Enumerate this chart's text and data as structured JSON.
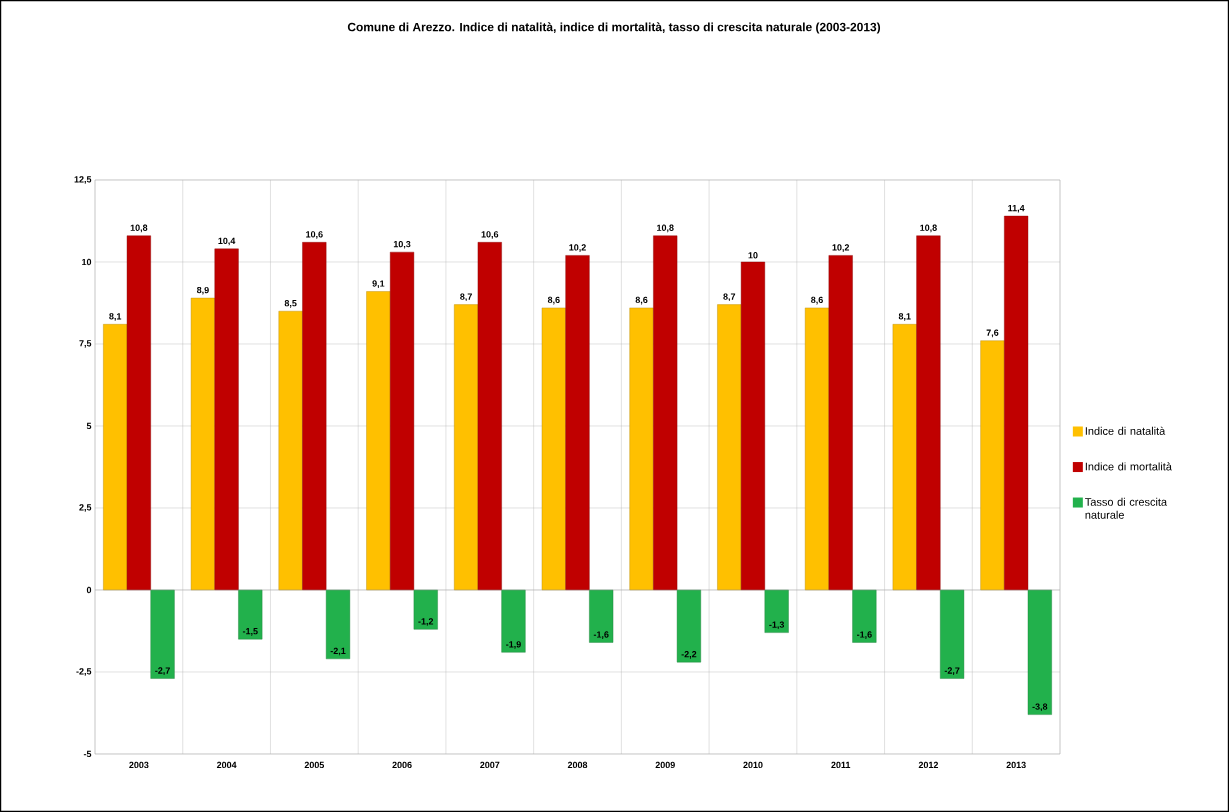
{
  "chart_data": {
    "type": "bar",
    "title": "Comune di Arezzo. Indice di natalità, indice di mortalità, tasso di crescita naturale (2003-2013)",
    "categories": [
      "2003",
      "2004",
      "2005",
      "2006",
      "2007",
      "2008",
      "2009",
      "2010",
      "2011",
      "2012",
      "2013"
    ],
    "series": [
      {
        "name": "Indice di natalità",
        "color": "#ffc000",
        "values": [
          8.1,
          8.9,
          8.5,
          9.1,
          8.7,
          8.6,
          8.6,
          8.7,
          8.6,
          8.1,
          7.6
        ],
        "value_labels": [
          "8,1",
          "8,9",
          "8,5",
          "9,1",
          "8,7",
          "8,6",
          "8,6",
          "8,7",
          "8,6",
          "8,1",
          "7,6"
        ]
      },
      {
        "name": "Indice di mortalità",
        "color": "#c00000",
        "values": [
          10.8,
          10.4,
          10.6,
          10.3,
          10.6,
          10.2,
          10.8,
          10,
          10.2,
          10.8,
          11.4
        ],
        "value_labels": [
          "10,8",
          "10,4",
          "10,6",
          "10,3",
          "10,6",
          "10,2",
          "10,8",
          "10",
          "10,2",
          "10,8",
          "11,4"
        ]
      },
      {
        "name": "Tasso di crescita naturale",
        "color": "#22b14c",
        "values": [
          -2.7,
          -1.5,
          -2.1,
          -1.2,
          -1.9,
          -1.6,
          -2.2,
          -1.3,
          -1.6,
          -2.7,
          -3.8
        ],
        "value_labels": [
          "-2,7",
          "-1,5",
          "-2,1",
          "-1,2",
          "-1,9",
          "-1,6",
          "-2,2",
          "-1,3",
          "-1,6",
          "-2,7",
          "-3,8"
        ]
      }
    ],
    "ylim": [
      -5,
      12.5
    ],
    "yticks": [
      -5,
      {
        "value": -2.5,
        "label": "-2,5"
      },
      0,
      {
        "value": 2.5,
        "label": "2,5"
      },
      5,
      {
        "value": 7.5,
        "label": "7,5"
      },
      10,
      {
        "value": 12.5,
        "label": "12,5"
      }
    ],
    "grid": true,
    "legend": "right"
  }
}
